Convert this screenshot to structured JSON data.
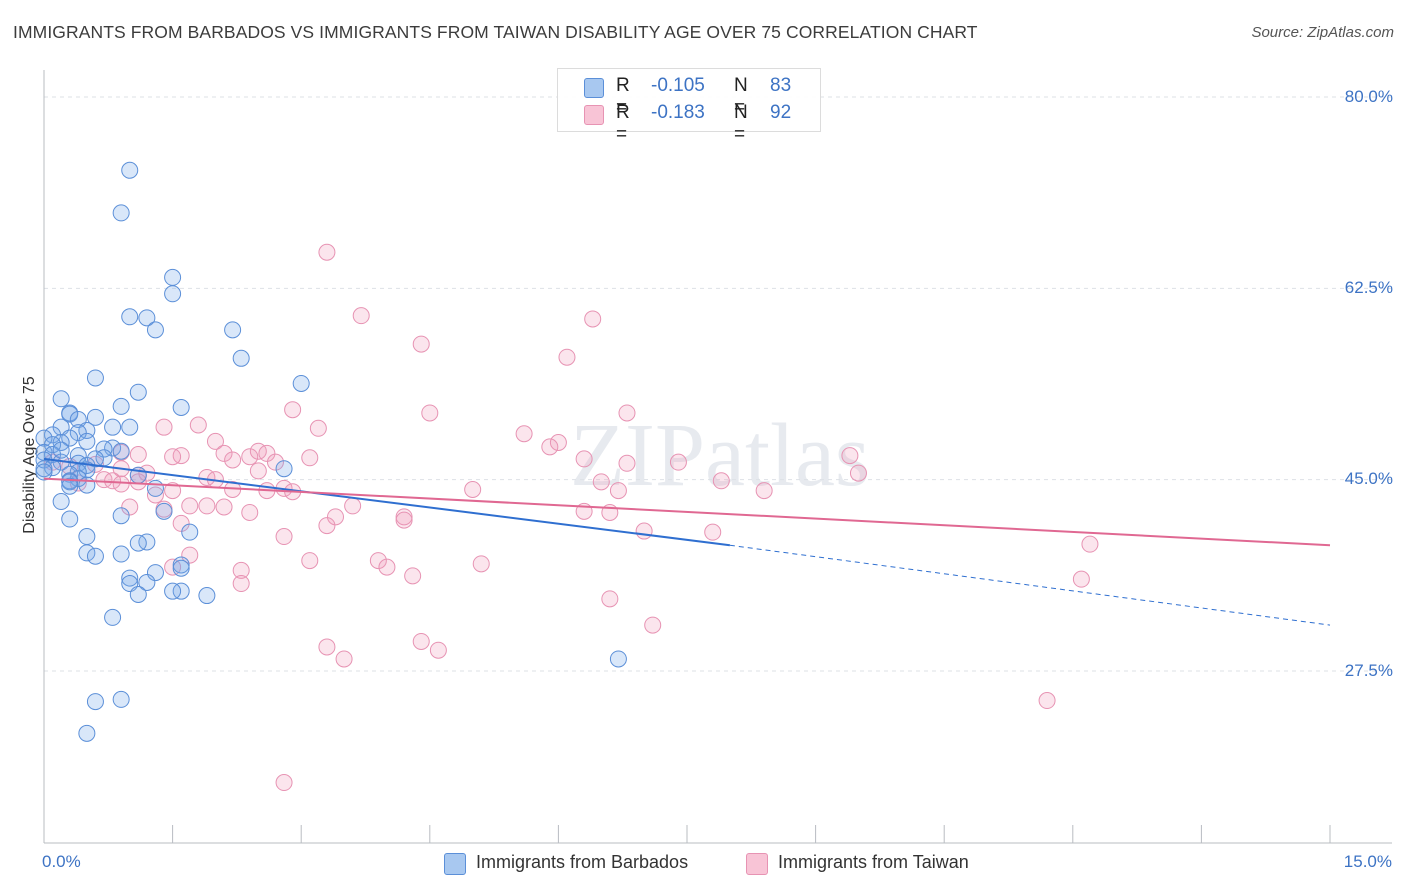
{
  "title": "IMMIGRANTS FROM BARBADOS VS IMMIGRANTS FROM TAIWAN DISABILITY AGE OVER 75 CORRELATION CHART",
  "source": "Source: ZipAtlas.com",
  "watermark": "ZIPatlas",
  "colors": {
    "blue_fill": "rgba(120,170,235,0.28)",
    "blue_stroke": "#5b8fd8",
    "blue_line": "#2f6fd0",
    "pink_fill": "rgba(240,150,185,0.25)",
    "pink_stroke": "#e793b3",
    "pink_line": "#e06892",
    "axis_text": "#3d73c4"
  },
  "stats": [
    {
      "r_label": "R =",
      "r_value": "-0.105",
      "n_label": "N =",
      "n_value": "83",
      "color": "#a8c8f0",
      "border": "#5b8fd8"
    },
    {
      "r_label": "R =",
      "r_value": "-0.183",
      "n_label": "N =",
      "n_value": "92",
      "color": "#f8c4d6",
      "border": "#e793b3"
    }
  ],
  "legend": [
    {
      "label": "Immigrants from Barbados",
      "color": "#a8c8f0",
      "border": "#5b8fd8"
    },
    {
      "label": "Immigrants from Taiwan",
      "color": "#f8c4d6",
      "border": "#e793b3"
    }
  ],
  "axis": {
    "x_min_label": "0.0%",
    "x_max_label": "15.0%",
    "y_ticks": [
      "80.0%",
      "62.5%",
      "45.0%",
      "27.5%"
    ]
  },
  "chart_data": {
    "type": "scatter",
    "title": "IMMIGRANTS FROM BARBADOS VS IMMIGRANTS FROM TAIWAN DISABILITY AGE OVER 75 CORRELATION CHART",
    "xlabel": "",
    "ylabel": "Disability Age Over 75",
    "xlim": [
      0,
      15
    ],
    "ylim": [
      10,
      82
    ],
    "y_gridlines": [
      27.5,
      45.0,
      62.5,
      80.0
    ],
    "series": [
      {
        "name": "Immigrants from Barbados",
        "trend": {
          "x0": 0,
          "y0": 46.9,
          "x1": 8.0,
          "y1": 39.0,
          "dashed_to_x": 15,
          "dashed_to_y": 31.7
        },
        "points": [
          [
            1.0,
            73.3
          ],
          [
            0.9,
            69.4
          ],
          [
            1.5,
            63.5
          ],
          [
            1.5,
            62.0
          ],
          [
            1.0,
            59.9
          ],
          [
            1.2,
            59.8
          ],
          [
            1.3,
            58.7
          ],
          [
            2.2,
            58.7
          ],
          [
            2.3,
            56.1
          ],
          [
            0.6,
            54.3
          ],
          [
            3.0,
            53.8
          ],
          [
            1.1,
            53.0
          ],
          [
            0.2,
            52.4
          ],
          [
            0.9,
            51.7
          ],
          [
            1.6,
            51.6
          ],
          [
            0.3,
            51.1
          ],
          [
            0.3,
            51.0
          ],
          [
            0.6,
            50.7
          ],
          [
            0.4,
            50.5
          ],
          [
            0.2,
            49.8
          ],
          [
            0.8,
            49.8
          ],
          [
            1.0,
            49.8
          ],
          [
            0.5,
            49.5
          ],
          [
            0.4,
            49.3
          ],
          [
            0.1,
            49.1
          ],
          [
            0.3,
            48.8
          ],
          [
            0.0,
            48.8
          ],
          [
            0.5,
            48.5
          ],
          [
            0.2,
            48.4
          ],
          [
            0.1,
            48.2
          ],
          [
            0.8,
            47.9
          ],
          [
            0.7,
            47.8
          ],
          [
            0.9,
            47.6
          ],
          [
            0.0,
            47.5
          ],
          [
            0.1,
            47.3
          ],
          [
            0.4,
            47.2
          ],
          [
            0.7,
            47.0
          ],
          [
            0.6,
            46.9
          ],
          [
            0.0,
            46.8
          ],
          [
            0.2,
            46.6
          ],
          [
            0.4,
            46.5
          ],
          [
            0.5,
            46.3
          ],
          [
            0.1,
            46.1
          ],
          [
            0.0,
            46.0
          ],
          [
            0.5,
            45.9
          ],
          [
            0.4,
            45.7
          ],
          [
            0.3,
            45.5
          ],
          [
            1.1,
            45.4
          ],
          [
            0.4,
            45.1
          ],
          [
            0.3,
            44.9
          ],
          [
            0.3,
            44.8
          ],
          [
            0.5,
            44.5
          ],
          [
            0.3,
            44.4
          ],
          [
            1.3,
            44.2
          ],
          [
            0.2,
            43.0
          ],
          [
            1.4,
            42.1
          ],
          [
            0.9,
            41.7
          ],
          [
            0.3,
            41.4
          ],
          [
            1.7,
            40.2
          ],
          [
            0.5,
            39.8
          ],
          [
            1.2,
            39.3
          ],
          [
            1.1,
            39.2
          ],
          [
            0.5,
            38.3
          ],
          [
            0.9,
            38.2
          ],
          [
            0.6,
            38.0
          ],
          [
            1.6,
            37.2
          ],
          [
            1.6,
            36.9
          ],
          [
            1.3,
            36.5
          ],
          [
            1.0,
            36.0
          ],
          [
            1.2,
            35.6
          ],
          [
            1.0,
            35.5
          ],
          [
            1.6,
            34.8
          ],
          [
            1.5,
            34.8
          ],
          [
            1.9,
            34.4
          ],
          [
            1.1,
            34.5
          ],
          [
            0.8,
            32.4
          ],
          [
            6.7,
            28.6
          ],
          [
            0.6,
            24.7
          ],
          [
            0.9,
            24.9
          ],
          [
            0.5,
            21.8
          ],
          [
            2.8,
            46.0
          ],
          [
            0.2,
            47.7
          ],
          [
            0.0,
            45.7
          ]
        ]
      },
      {
        "name": "Immigrants from Taiwan",
        "trend": {
          "x0": 0,
          "y0": 45.1,
          "x1": 15,
          "y1": 39.0
        },
        "points": [
          [
            3.3,
            65.8
          ],
          [
            3.7,
            60.0
          ],
          [
            6.4,
            59.7
          ],
          [
            4.4,
            57.4
          ],
          [
            6.1,
            56.2
          ],
          [
            2.9,
            51.4
          ],
          [
            4.5,
            51.1
          ],
          [
            6.8,
            51.1
          ],
          [
            1.8,
            50.0
          ],
          [
            1.4,
            49.8
          ],
          [
            3.2,
            49.7
          ],
          [
            5.6,
            49.2
          ],
          [
            2.0,
            48.5
          ],
          [
            6.0,
            48.4
          ],
          [
            5.9,
            48.0
          ],
          [
            2.5,
            47.6
          ],
          [
            2.1,
            47.4
          ],
          [
            2.6,
            47.4
          ],
          [
            1.1,
            47.3
          ],
          [
            1.6,
            47.2
          ],
          [
            2.4,
            47.1
          ],
          [
            3.1,
            47.0
          ],
          [
            9.4,
            47.2
          ],
          [
            2.2,
            46.8
          ],
          [
            2.7,
            46.6
          ],
          [
            6.3,
            46.9
          ],
          [
            7.4,
            46.6
          ],
          [
            6.8,
            46.5
          ],
          [
            0.6,
            46.4
          ],
          [
            0.3,
            46.2
          ],
          [
            0.1,
            46.6
          ],
          [
            0.9,
            46.0
          ],
          [
            2.5,
            45.8
          ],
          [
            1.1,
            45.4
          ],
          [
            9.5,
            45.6
          ],
          [
            1.9,
            45.2
          ],
          [
            0.7,
            45.0
          ],
          [
            0.8,
            44.9
          ],
          [
            6.5,
            44.8
          ],
          [
            7.9,
            44.9
          ],
          [
            1.1,
            44.8
          ],
          [
            0.9,
            44.6
          ],
          [
            0.4,
            44.7
          ],
          [
            2.2,
            44.1
          ],
          [
            2.6,
            44.0
          ],
          [
            2.8,
            44.2
          ],
          [
            1.5,
            44.0
          ],
          [
            5.0,
            44.1
          ],
          [
            6.7,
            44.0
          ],
          [
            8.4,
            44.0
          ],
          [
            1.3,
            43.6
          ],
          [
            1.7,
            42.6
          ],
          [
            1.9,
            42.6
          ],
          [
            3.6,
            42.6
          ],
          [
            2.1,
            42.5
          ],
          [
            1.0,
            42.5
          ],
          [
            1.4,
            42.3
          ],
          [
            2.4,
            42.0
          ],
          [
            3.4,
            41.6
          ],
          [
            4.2,
            41.6
          ],
          [
            1.6,
            41.0
          ],
          [
            6.3,
            42.1
          ],
          [
            6.6,
            42.0
          ],
          [
            7.0,
            40.3
          ],
          [
            7.8,
            40.2
          ],
          [
            2.8,
            39.8
          ],
          [
            1.7,
            38.1
          ],
          [
            3.1,
            37.6
          ],
          [
            3.9,
            37.6
          ],
          [
            5.1,
            37.3
          ],
          [
            4.0,
            37.0
          ],
          [
            1.5,
            37.0
          ],
          [
            2.3,
            36.7
          ],
          [
            4.3,
            36.2
          ],
          [
            2.3,
            35.5
          ],
          [
            12.1,
            35.9
          ],
          [
            6.6,
            34.1
          ],
          [
            7.1,
            31.7
          ],
          [
            4.4,
            30.2
          ],
          [
            4.6,
            29.4
          ],
          [
            3.3,
            29.7
          ],
          [
            3.5,
            28.6
          ],
          [
            11.7,
            24.8
          ],
          [
            2.8,
            17.3
          ],
          [
            0.9,
            47.5
          ],
          [
            1.5,
            47.1
          ],
          [
            12.2,
            39.1
          ],
          [
            4.2,
            41.3
          ],
          [
            2.9,
            43.9
          ],
          [
            3.3,
            40.8
          ],
          [
            1.2,
            45.6
          ],
          [
            2.0,
            45.0
          ]
        ]
      }
    ]
  }
}
